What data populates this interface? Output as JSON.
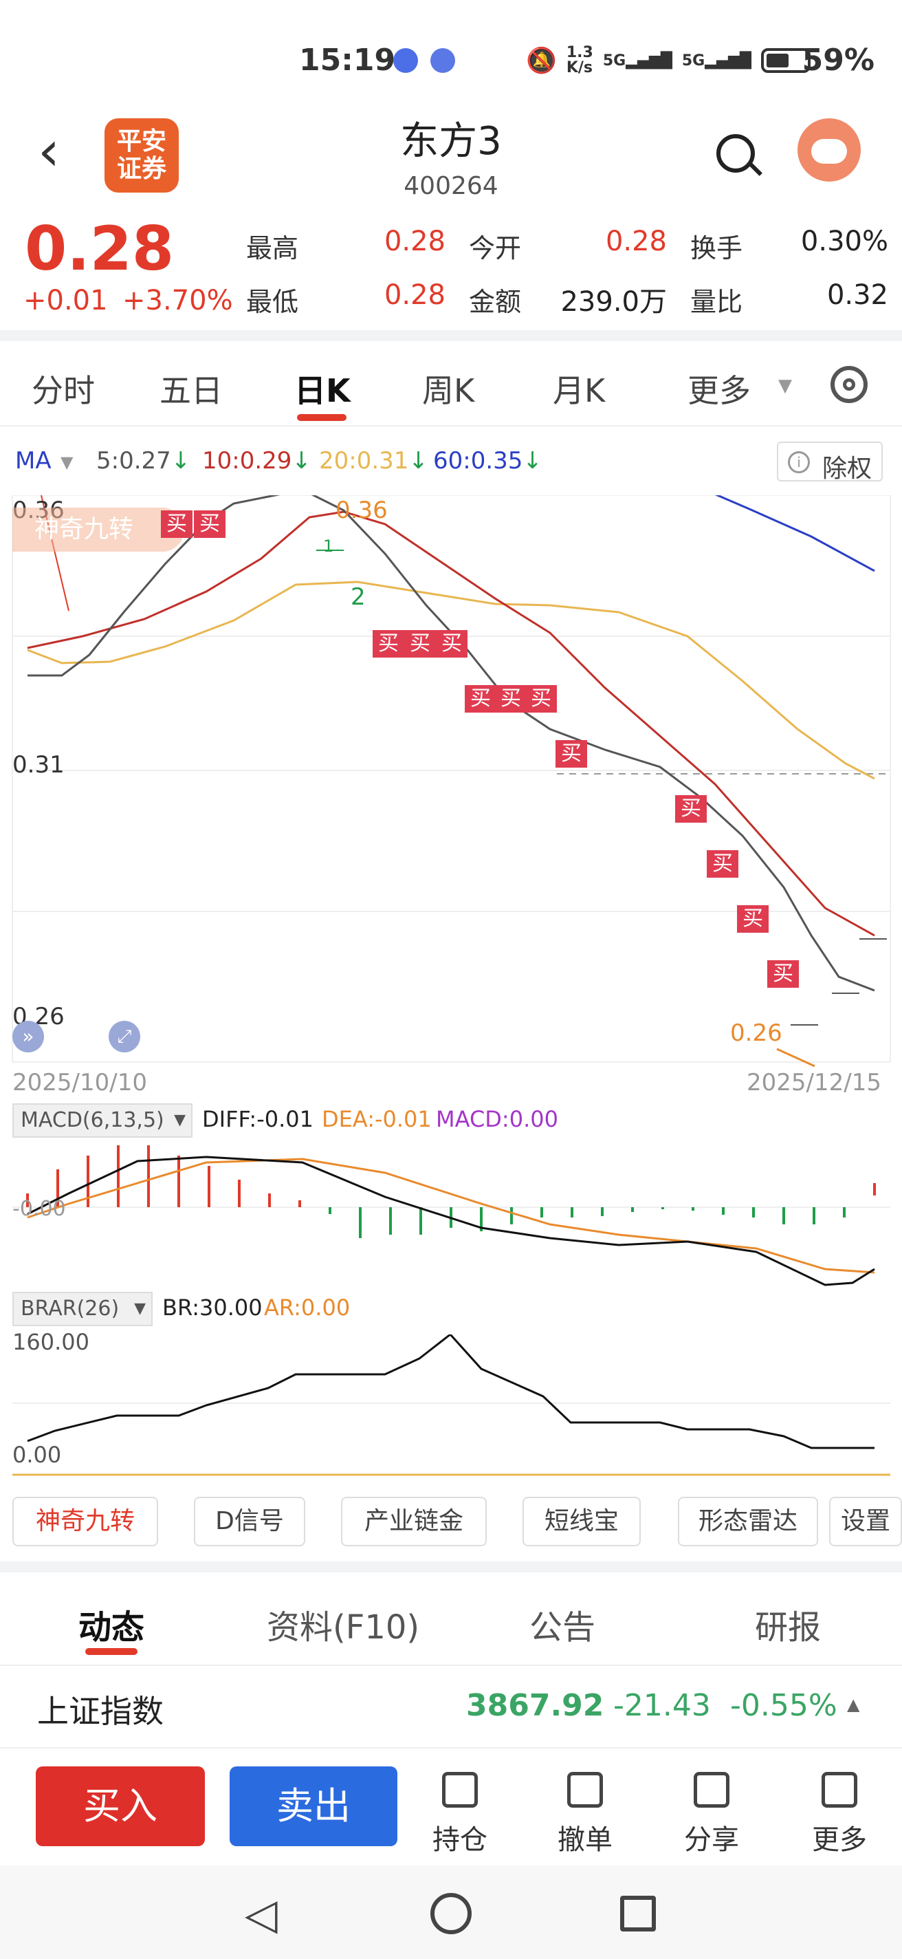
{
  "status": {
    "time": "15:19",
    "net_speed": "1.3\nK/s",
    "sig1": "5G",
    "sig2": "5G",
    "battery": "59%"
  },
  "header": {
    "logo": "平安\n证券",
    "title": "东方3",
    "code": "400264"
  },
  "quote": {
    "price": "0.28",
    "change": "+0.01",
    "change_pct": "+3.70%",
    "rows": [
      {
        "l1": "最高",
        "v1": "0.28",
        "l2": "今开",
        "v2": "0.28",
        "l3": "换手",
        "v3": "0.30%"
      },
      {
        "l1": "最低",
        "v1": "0.28",
        "l2": "金额",
        "v2": "239.0万",
        "l3": "量比",
        "v3": "0.32"
      }
    ]
  },
  "tabs": {
    "items": [
      "分时",
      "五日",
      "日K",
      "周K",
      "月K",
      "更多"
    ],
    "active": "日K"
  },
  "ma": {
    "name": "MA",
    "ma5": "5:0.27",
    "ma10": "10:0.29",
    "ma20": "20:0.31",
    "ma60": "60:0.35",
    "chuquan": "除权"
  },
  "kline": {
    "y_top": "0.36",
    "y_mid": "0.31",
    "y_bot": "0.26",
    "high_label": "0.36",
    "low_label": "0.26",
    "date_start": "2025/10/10",
    "date_end": "2025/12/15",
    "badge": "神奇九转",
    "buy": "买",
    "marks": [
      "1",
      "2"
    ]
  },
  "macd": {
    "name": "MACD(6,13,5)",
    "diff": "DIFF:-0.01",
    "dea": "DEA:-0.01",
    "macd": "MACD:0.00",
    "axis": "-0.00"
  },
  "brar": {
    "name": "BRAR(26)",
    "br": "BR:30.00",
    "ar": "AR:0.00",
    "top": "160.00",
    "bottom": "0.00"
  },
  "chips": [
    "神奇九转",
    "D信号",
    "产业链金",
    "短线宝",
    "形态雷达",
    "设置"
  ],
  "bottom_tabs": {
    "items": [
      "动态",
      "资料(F10)",
      "公告",
      "研报"
    ],
    "active": "动态"
  },
  "index": {
    "name": "上证指数",
    "value": "3867.92",
    "change": "-21.43",
    "pct": "-0.55%"
  },
  "actions": {
    "buy": "买入",
    "sell": "卖出",
    "items": [
      "持仓",
      "撤单",
      "分享",
      "更多"
    ]
  },
  "colors": {
    "red": "#e13a2a",
    "green": "#1f9d4a",
    "blue": "#2b6be0",
    "orange": "#e98a2c",
    "ma20": "#e8b650",
    "ma60": "#2a3fc4",
    "purple": "#a335c8"
  }
}
